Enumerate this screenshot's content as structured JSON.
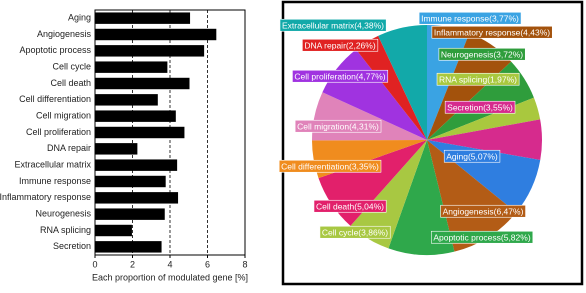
{
  "chart_data": [
    {
      "type": "bar",
      "orientation": "horizontal",
      "categories": [
        "Aging",
        "Angiogenesis",
        "Apoptotic process",
        "Cell cycle",
        "Cell death",
        "Cell differentiation",
        "Cell migration",
        "Cell proliferation",
        "DNA repair",
        "Extracellular matrix",
        "Immune response",
        "Inflammatory response",
        "Neurogenesis",
        "RNA splicing",
        "Secretion"
      ],
      "values": [
        5.07,
        6.47,
        5.82,
        3.86,
        5.04,
        3.35,
        4.31,
        4.77,
        2.26,
        4.38,
        3.77,
        4.43,
        3.72,
        1.97,
        3.55
      ],
      "color": "#000000",
      "xlabel": "Each proportion of modulated gene [%]",
      "xlim": [
        0,
        8
      ],
      "xticks": [
        0,
        2,
        4,
        6,
        8
      ],
      "grid": true
    },
    {
      "type": "pie",
      "categories": [
        "Immune response",
        "Inflammatory response",
        "Neurogenesis",
        "RNA splicing",
        "Secretion",
        "Aging",
        "Angiogenesis",
        "Apoptotic process",
        "Cell cycle",
        "Cell death",
        "Cell differentiation",
        "Cell migration",
        "Cell proliferation",
        "DNA repair",
        "Extracellular matrix"
      ],
      "values": [
        3.77,
        4.43,
        3.72,
        1.97,
        3.55,
        5.07,
        6.47,
        5.82,
        3.86,
        5.04,
        3.35,
        4.31,
        4.77,
        2.26,
        4.38
      ],
      "value_labels": [
        "Immune response(3,77%)",
        "Inflammatory response(4,43%)",
        "Neurogenesis(3,72%)",
        "RNA splicing(1,97%)",
        "Secretion(3,55%)",
        "Aging(5,07%)",
        "Angiogenesis(6,47%)",
        "Apoptotic process(5,82%)",
        "Cell cycle(3,86%)",
        "Cell death(5,04%)",
        "Cell differentiation(3,35%)",
        "Cell migration(4,31%)",
        "Cell proliferation(4,77%)",
        "DNA repair(2,26%)",
        "Extracellular matrix(4,38%)"
      ],
      "colors": [
        "#3aa3e3",
        "#a3520c",
        "#2f9d3c",
        "#a9c83e",
        "#d62b8d",
        "#2f7ee0",
        "#b35c16",
        "#2fa84b",
        "#a8c842",
        "#e2206b",
        "#f08c1e",
        "#e083ba",
        "#a033e0",
        "#e02222",
        "#12a9a9"
      ]
    }
  ]
}
